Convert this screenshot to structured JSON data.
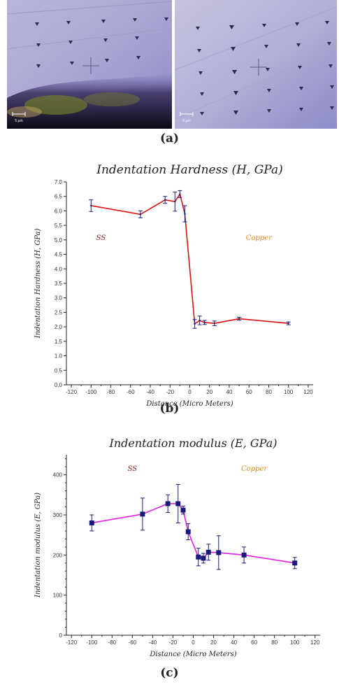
{
  "figure": {
    "captions": {
      "a": "(a)",
      "b": "(b)",
      "c": "(c)"
    }
  },
  "micrographs": {
    "left": {
      "scale_bar_label": "5 µm"
    },
    "right": {
      "scale_bar_label": "5 µm"
    }
  },
  "colors": {
    "hardness_line": "#e01010",
    "modulus_line": "#e020e0",
    "marker": "#1a1a7a",
    "ss_label": "#8b1a1a",
    "copper_label": "#e08a20"
  },
  "chart_data": [
    {
      "id": "hardness",
      "type": "line",
      "title": "Indentation Hardness (H, GPa)",
      "xlabel": "Distance (Micro Meters)",
      "ylabel": "Indentation Hardness (H, GPa)",
      "xlim": [
        -125,
        125
      ],
      "ylim": [
        0,
        7
      ],
      "xticks": [
        -120,
        -100,
        -80,
        -60,
        -40,
        -20,
        0,
        20,
        40,
        60,
        80,
        100,
        120
      ],
      "yticks": [
        0.0,
        0.5,
        1.0,
        1.5,
        2.0,
        2.5,
        3.0,
        3.5,
        4.0,
        4.5,
        5.0,
        5.5,
        6.0,
        6.5,
        7.0
      ],
      "ytick_decimals": 1,
      "marker": "none",
      "annotations": [
        {
          "text": "SS",
          "x": -90,
          "y": 5.0,
          "color_key": "ss_label"
        },
        {
          "text": "Copper",
          "x": 70,
          "y": 5.0,
          "color_key": "copper_label"
        }
      ],
      "series": [
        {
          "x": [
            -100,
            -50,
            -25,
            -15,
            -10,
            -5,
            5,
            10,
            15,
            25,
            50,
            100
          ],
          "y": [
            6.18,
            5.88,
            6.38,
            6.32,
            6.58,
            5.9,
            2.1,
            2.22,
            2.15,
            2.12,
            2.28,
            2.12
          ],
          "err": [
            0.2,
            0.12,
            0.12,
            0.33,
            0.12,
            0.28,
            0.15,
            0.15,
            0.07,
            0.08,
            0.05,
            0.05
          ]
        }
      ]
    },
    {
      "id": "modulus",
      "type": "line",
      "title": "Indentation modulus (E, GPa)",
      "xlabel": "Distance (Micro Meters)",
      "ylabel": "Indentation modulus (E, GPa)",
      "xlim": [
        -125,
        125
      ],
      "ylim": [
        0,
        450
      ],
      "xticks": [
        -120,
        -100,
        -80,
        -60,
        -40,
        -20,
        0,
        20,
        40,
        60,
        80,
        100,
        120
      ],
      "yticks": [
        0,
        100,
        200,
        300,
        400
      ],
      "ytick_decimals": 0,
      "marker": "square",
      "annotations": [
        {
          "text": "SS",
          "x": -60,
          "y": 410,
          "color_key": "ss_label"
        },
        {
          "text": "Copper",
          "x": 60,
          "y": 410,
          "color_key": "copper_label"
        }
      ],
      "series": [
        {
          "x": [
            -100,
            -50,
            -25,
            -15,
            -10,
            -5,
            5,
            10,
            15,
            25,
            50,
            100
          ],
          "y": [
            280,
            302,
            328,
            328,
            312,
            258,
            195,
            192,
            207,
            206,
            200,
            180
          ],
          "err": [
            20,
            40,
            22,
            48,
            10,
            20,
            22,
            12,
            20,
            42,
            20,
            14
          ]
        }
      ]
    }
  ]
}
